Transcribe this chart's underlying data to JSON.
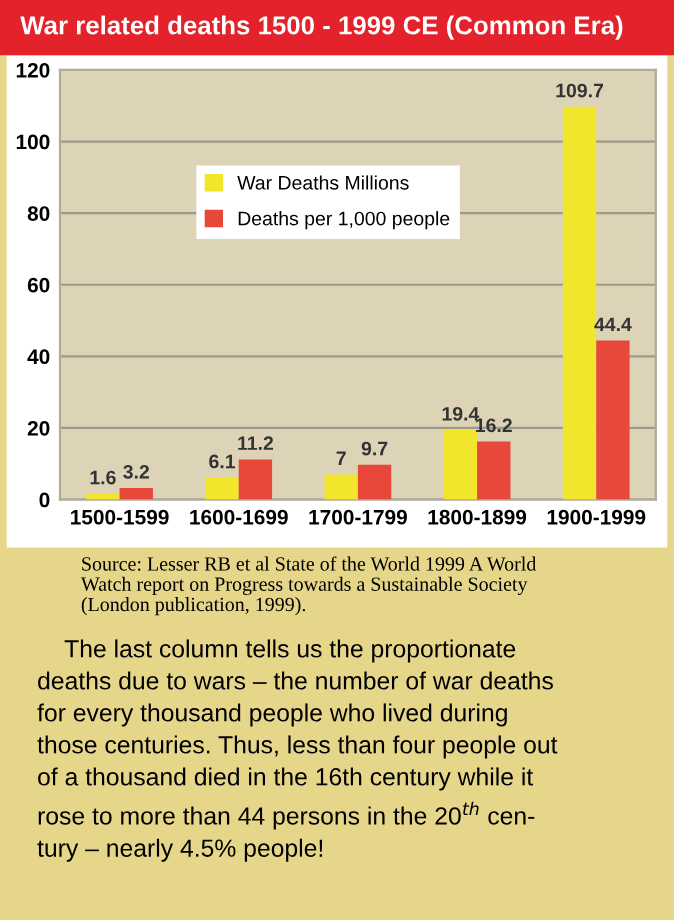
{
  "chart_data": {
    "type": "bar",
    "title": "War related deaths 1500 - 1999 CE (Common Era)",
    "categories": [
      "1500-1599",
      "1600-1699",
      "1700-1799",
      "1800-1899",
      "1900-1999"
    ],
    "series": [
      {
        "name": "War Deaths Millions",
        "color": "#f2e62c",
        "values": [
          1.6,
          6.1,
          7,
          19.4,
          109.7
        ]
      },
      {
        "name": "Deaths per 1,000 people",
        "color": "#e8483a",
        "values": [
          3.2,
          11.2,
          9.7,
          16.2,
          44.4
        ]
      }
    ],
    "ylim": [
      0,
      120
    ],
    "yticks": [
      0,
      20,
      40,
      60,
      80,
      100,
      120
    ],
    "grid": "y",
    "legend": "top",
    "data_labels": true,
    "annotations": [
      "Source: Lesser RB et al State of the World 1999 A World\nWatch report on Progress towards a Sustainable Society\n(London publication, 1999).",
      "    The last column tells us the proportionate\ndeaths due to wars – the number of war deaths\nfor every thousand people who lived during\nthose centuries. Thus, less than four people out\nof a thousand died in the 16th century while it\nrose to more than 44 persons in the 20$^{th}$ cen-\ntury – nearly 4.5% people!"
    ]
  }
}
